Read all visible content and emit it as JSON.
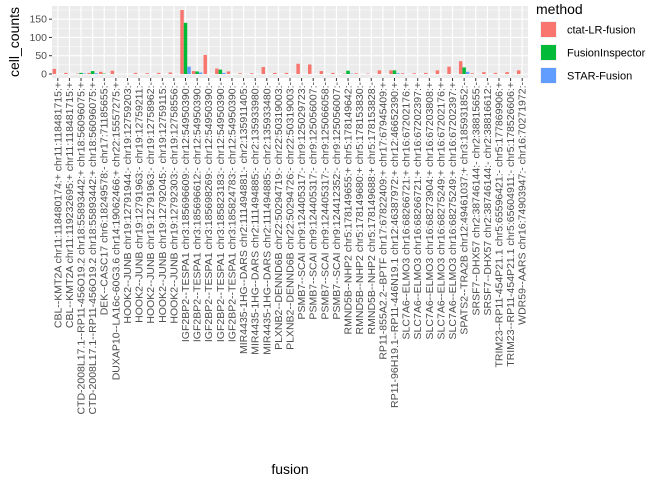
{
  "chart_data": {
    "type": "bar",
    "xlabel": "fusion",
    "ylabel": "cell_counts",
    "ylim": [
      0,
      180
    ],
    "yticks": [
      0,
      50,
      100,
      150
    ],
    "grid": true,
    "legend": {
      "title": "method",
      "placement": "right",
      "entries": [
        "ctat-LR-fusion",
        "FusionInspector",
        "STAR-Fusion"
      ]
    },
    "colors": {
      "ctat-LR-fusion": "#F8766D",
      "FusionInspector": "#00BA38",
      "STAR-Fusion": "#619CFF",
      "panel_bg": "#EBEBEB",
      "grid_major": "#FFFFFF"
    },
    "categories": [
      "CBL--KMT2A chr11:118480174:+ chr11:118481715:+",
      "CBL--KMT2A chr11:119232695:+ chr11:118481715:+",
      "CTD-2008L17.1--RP11-456O19.2 chr18:55893442:+ chr18:56096075:+",
      "CTD-2008L17.1--RP11-456O19.2 chr18:55893442:+ chr18:56096075:+",
      "DEK--CASC17 chr6:18249578:- chr17:71185655:-",
      "DUXAP10--LA16c-60G3.6 chr14:19062466:+ chr22:15557275:+",
      "HOOK2--JUNB chr19:12791944:- chr19:12759203:-",
      "HOOK2--JUNB chr19:12791963:- chr19:12759211:-",
      "HOOK2--JUNB chr19:12791963:- chr19:12758962:-",
      "HOOK2--JUNB chr19:12792045:- chr19:12759115:-",
      "HOOK2--JUNB chr19:12792303:- chr19:12758556:-",
      "IGF2BP2--TESPA1 chr3:185696609:- chr12:54950390:-",
      "IGF2BP2--TESPA1 chr3:185696612:- chr12:54950390:-",
      "IGF2BP2--TESPA1 chr3:185698269:- chr12:54950390:-",
      "IGF2BP2--TESPA1 chr3:185823183:- chr12:54950390:-",
      "IGF2BP2--TESPA1 chr3:185824783:- chr12:54950390:-",
      "MIR4435-1HG--DARS chr2:111494881:- chr2:135911405:-",
      "MIR4435-1HG--DARS chr2:111494885:- chr2:135933980:-",
      "MIR4435-1HG--DARS chr2:111494885:- chr2:135933480:-",
      "PLXNB2--DENND6B chr22:50294719:- chr22:50319003:-",
      "PLXNB2--DENND6B chr22:50294726:- chr22:50319003:-",
      "PSMB7--SCAI chr9:124405317:- chr9:125029723:-",
      "PSMB7--SCAI chr9:124405317:- chr9:125056007:-",
      "PSMB7--SCAI chr9:124405317:- chr9:125066058:-",
      "PSMB7--SCAI chr9:124412352:- chr9:125056007:-",
      "RMND5B--NHP2 chr5:178149655:+ chr5:178149642:-",
      "RMND5B--NHP2 chr5:178149680:+ chr5:178153830:-",
      "RMND5B--NHP2 chr5:178149688:+ chr5:178153828:-",
      "RP11-855A2.2--BPTF chr17:67822409:+ chr17:67945409:+",
      "RP11-96H19.1--RP11-446N19.1 chr12:46387972:+ chr12:46652390:+",
      "SLC7A6--ELMO3 chr16:68266721:+ chr16:67202176:+",
      "SLC7A6--ELMO3 chr16:68266721:+ chr16:67202397:+",
      "SLC7A6--ELMO3 chr16:68273904:+ chr16:67203808:+",
      "SLC7A6--ELMO3 chr16:68275249:+ chr16:67202176:+",
      "SLC7A6--ELMO3 chr16:68275249:+ chr16:67202397:+",
      "SPATS2--TRA2B chr12:49461037:+ chr3:185931852:-",
      "SRSF7--DHX57 chr2:38746144:- chr2:38815655:-",
      "SRSF7--DHX57 chr2:38746144:- chr2:38816612:-",
      "TRIM23--RP11-454P21.1 chr5:65596421:- chr5:177869906:+",
      "TRIM23--RP11-454P21.1 chr5:65604911:- chr5:178526606:+",
      "WDR59--AARS chr16:74903947:- chr16:70271972:-"
    ],
    "series": [
      {
        "name": "ctat-LR-fusion",
        "values": [
          14,
          3,
          1,
          3,
          6,
          9,
          0,
          3,
          2,
          3,
          4,
          175,
          8,
          52,
          15,
          7,
          2,
          2,
          19,
          3,
          3,
          28,
          26,
          8,
          3,
          1,
          2,
          1,
          10,
          10,
          2,
          2,
          3,
          10,
          20,
          35,
          2,
          5,
          3,
          5,
          10
        ]
      },
      {
        "name": "FusionInspector",
        "values": [
          0,
          0,
          3,
          8,
          1,
          0,
          0,
          0,
          0,
          0,
          0,
          140,
          7,
          0,
          12,
          0,
          0,
          0,
          0,
          0,
          0,
          0,
          0,
          0,
          0,
          9,
          0,
          0,
          0,
          10,
          0,
          0,
          0,
          0,
          0,
          18,
          0,
          0,
          0,
          0,
          0
        ]
      },
      {
        "name": "STAR-Fusion",
        "values": [
          0,
          0,
          1,
          2,
          0,
          0,
          0,
          0,
          0,
          0,
          0,
          20,
          4,
          0,
          3,
          0,
          0,
          0,
          0,
          0,
          0,
          0,
          0,
          0,
          0,
          1,
          0,
          0,
          0,
          2,
          0,
          0,
          0,
          0,
          0,
          6,
          0,
          0,
          0,
          0,
          0
        ]
      }
    ]
  }
}
